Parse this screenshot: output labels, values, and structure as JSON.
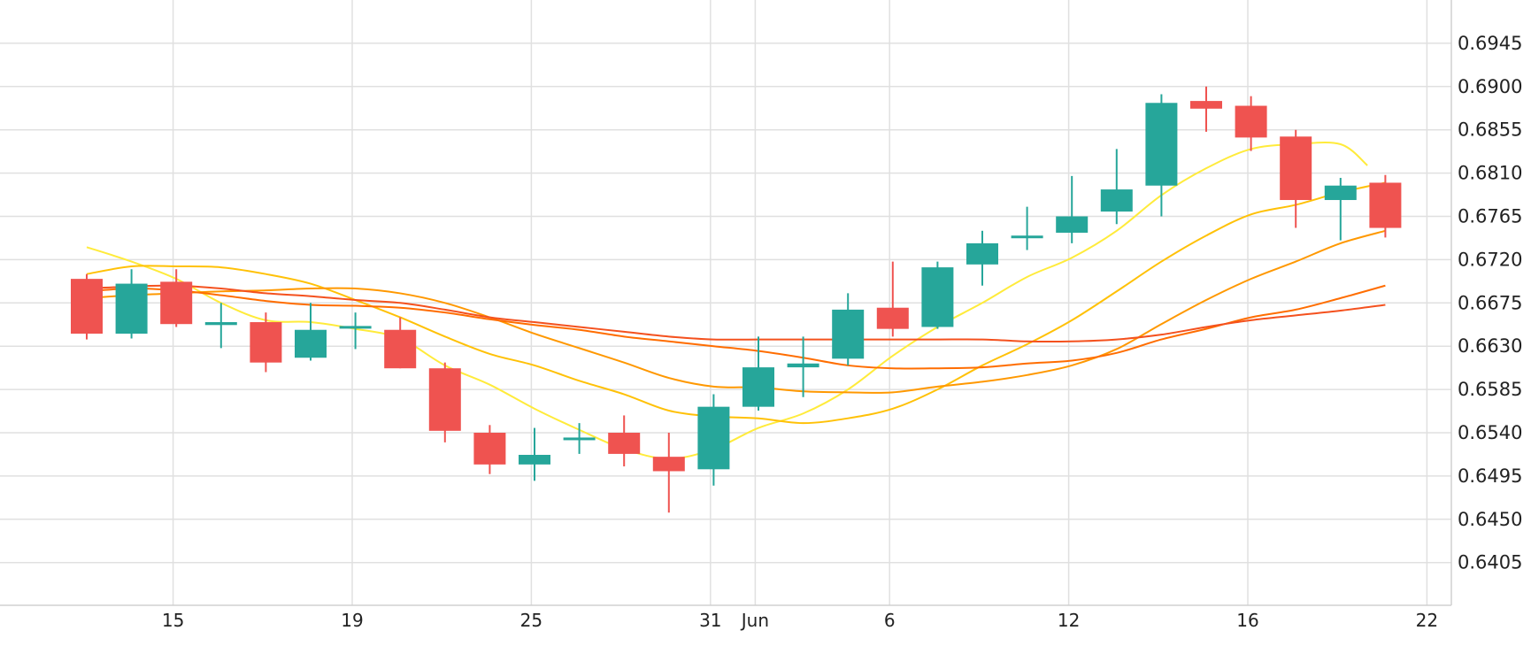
{
  "chart_data": {
    "type": "candlestick",
    "grid": true,
    "y_axis_position": "right",
    "ylim": [
      0.636,
      0.699
    ],
    "y_ticks": [
      "0.6945",
      "0.6900",
      "0.6855",
      "0.6810",
      "0.6765",
      "0.6720",
      "0.6675",
      "0.6630",
      "0.6585",
      "0.6540",
      "0.6495",
      "0.6450",
      "0.6405"
    ],
    "x_ticks": [
      {
        "label": "15",
        "index": 1
      },
      {
        "label": "19",
        "index": 5
      },
      {
        "label": "25",
        "index": 9
      },
      {
        "label": "31",
        "index": 13
      },
      {
        "label": "Jun",
        "index": 14
      },
      {
        "label": "6",
        "index": 17
      },
      {
        "label": "12",
        "index": 21
      },
      {
        "label": "16",
        "index": 25
      },
      {
        "label": "22",
        "index": 29
      }
    ],
    "candles": [
      {
        "o": 0.67,
        "h": 0.6705,
        "l": 0.6637,
        "c": 0.6643
      },
      {
        "o": 0.6643,
        "h": 0.671,
        "l": 0.6638,
        "c": 0.6695
      },
      {
        "o": 0.6697,
        "h": 0.671,
        "l": 0.665,
        "c": 0.6653
      },
      {
        "o": 0.6652,
        "h": 0.6675,
        "l": 0.6628,
        "c": 0.6655
      },
      {
        "o": 0.6655,
        "h": 0.6665,
        "l": 0.6603,
        "c": 0.6613
      },
      {
        "o": 0.6618,
        "h": 0.6675,
        "l": 0.6615,
        "c": 0.6647
      },
      {
        "o": 0.665,
        "h": 0.6665,
        "l": 0.6627,
        "c": 0.6651
      },
      {
        "o": 0.6647,
        "h": 0.666,
        "l": 0.6607,
        "c": 0.6607
      },
      {
        "o": 0.6607,
        "h": 0.6613,
        "l": 0.653,
        "c": 0.6542
      },
      {
        "o": 0.654,
        "h": 0.6548,
        "l": 0.6497,
        "c": 0.6507
      },
      {
        "o": 0.6507,
        "h": 0.6545,
        "l": 0.649,
        "c": 0.6517
      },
      {
        "o": 0.6535,
        "h": 0.655,
        "l": 0.6518,
        "c": 0.6535
      },
      {
        "o": 0.654,
        "h": 0.6558,
        "l": 0.6505,
        "c": 0.6518
      },
      {
        "o": 0.6515,
        "h": 0.654,
        "l": 0.6457,
        "c": 0.65
      },
      {
        "o": 0.6502,
        "h": 0.658,
        "l": 0.6485,
        "c": 0.6567
      },
      {
        "o": 0.6567,
        "h": 0.664,
        "l": 0.6563,
        "c": 0.6608
      },
      {
        "o": 0.6608,
        "h": 0.664,
        "l": 0.6577,
        "c": 0.6612
      },
      {
        "o": 0.6617,
        "h": 0.6685,
        "l": 0.661,
        "c": 0.6668
      },
      {
        "o": 0.667,
        "h": 0.6718,
        "l": 0.664,
        "c": 0.6648
      },
      {
        "o": 0.665,
        "h": 0.6718,
        "l": 0.6648,
        "c": 0.6712
      },
      {
        "o": 0.6715,
        "h": 0.675,
        "l": 0.6693,
        "c": 0.6737
      },
      {
        "o": 0.6745,
        "h": 0.6775,
        "l": 0.673,
        "c": 0.6745
      },
      {
        "o": 0.6748,
        "h": 0.6807,
        "l": 0.6737,
        "c": 0.6765
      },
      {
        "o": 0.677,
        "h": 0.6835,
        "l": 0.6757,
        "c": 0.6793
      },
      {
        "o": 0.6797,
        "h": 0.6892,
        "l": 0.6765,
        "c": 0.6883
      },
      {
        "o": 0.6885,
        "h": 0.69,
        "l": 0.6853,
        "c": 0.6877
      },
      {
        "o": 0.688,
        "h": 0.689,
        "l": 0.6833,
        "c": 0.6847
      },
      {
        "o": 0.6848,
        "h": 0.6855,
        "l": 0.6753,
        "c": 0.6782
      },
      {
        "o": 0.6782,
        "h": 0.6805,
        "l": 0.674,
        "c": 0.6797
      },
      {
        "o": 0.68,
        "h": 0.6808,
        "l": 0.6743,
        "c": 0.6753
      }
    ],
    "moving_averages": [
      {
        "color": "#FFEB3B",
        "values": [
          [
            0,
            0.6733
          ],
          [
            1,
            0.6718
          ],
          [
            2,
            0.67
          ],
          [
            3,
            0.6675
          ],
          [
            4,
            0.6657
          ],
          [
            5,
            0.6655
          ],
          [
            6,
            0.6648
          ],
          [
            7,
            0.6638
          ],
          [
            8,
            0.661
          ],
          [
            9,
            0.659
          ],
          [
            10,
            0.6565
          ],
          [
            11,
            0.6543
          ],
          [
            12,
            0.6523
          ],
          [
            13,
            0.6513
          ],
          [
            14,
            0.6523
          ],
          [
            15,
            0.6545
          ],
          [
            16,
            0.656
          ],
          [
            17,
            0.6585
          ],
          [
            18,
            0.662
          ],
          [
            19,
            0.665
          ],
          [
            20,
            0.6675
          ],
          [
            21,
            0.6702
          ],
          [
            22,
            0.6722
          ],
          [
            23,
            0.675
          ],
          [
            24,
            0.6787
          ],
          [
            25,
            0.6815
          ],
          [
            26,
            0.6835
          ],
          [
            27,
            0.684
          ],
          [
            28,
            0.684
          ],
          [
            28.6,
            0.6818
          ]
        ]
      },
      {
        "color": "#FFC107",
        "values": [
          [
            0,
            0.6705
          ],
          [
            1,
            0.6713
          ],
          [
            2,
            0.6713
          ],
          [
            3,
            0.6712
          ],
          [
            4,
            0.6705
          ],
          [
            5,
            0.6695
          ],
          [
            6,
            0.6678
          ],
          [
            7,
            0.666
          ],
          [
            8,
            0.664
          ],
          [
            9,
            0.6622
          ],
          [
            10,
            0.661
          ],
          [
            11,
            0.6594
          ],
          [
            12,
            0.658
          ],
          [
            13,
            0.6563
          ],
          [
            14,
            0.6557
          ],
          [
            15,
            0.6555
          ],
          [
            16,
            0.655
          ],
          [
            17,
            0.6555
          ],
          [
            18,
            0.6565
          ],
          [
            19,
            0.6585
          ],
          [
            20,
            0.661
          ],
          [
            21,
            0.6632
          ],
          [
            22,
            0.6657
          ],
          [
            23,
            0.6687
          ],
          [
            24,
            0.6718
          ],
          [
            25,
            0.6745
          ],
          [
            26,
            0.6767
          ],
          [
            27,
            0.6777
          ],
          [
            28,
            0.679
          ],
          [
            29,
            0.68
          ]
        ]
      },
      {
        "color": "#FF9800",
        "values": [
          [
            0,
            0.668
          ],
          [
            1,
            0.6683
          ],
          [
            2,
            0.6685
          ],
          [
            3,
            0.6687
          ],
          [
            4,
            0.6688
          ],
          [
            5,
            0.669
          ],
          [
            6,
            0.669
          ],
          [
            7,
            0.6685
          ],
          [
            8,
            0.6675
          ],
          [
            9,
            0.666
          ],
          [
            10,
            0.6643
          ],
          [
            11,
            0.6628
          ],
          [
            12,
            0.6613
          ],
          [
            13,
            0.6597
          ],
          [
            14,
            0.6588
          ],
          [
            15,
            0.6587
          ],
          [
            16,
            0.6583
          ],
          [
            17,
            0.6582
          ],
          [
            18,
            0.6582
          ],
          [
            19,
            0.6588
          ],
          [
            20,
            0.6593
          ],
          [
            21,
            0.66
          ],
          [
            22,
            0.661
          ],
          [
            23,
            0.6627
          ],
          [
            24,
            0.6653
          ],
          [
            25,
            0.6678
          ],
          [
            26,
            0.67
          ],
          [
            27,
            0.6718
          ],
          [
            28,
            0.6737
          ],
          [
            29,
            0.675
          ]
        ]
      },
      {
        "color": "#FF6D00",
        "values": [
          [
            0,
            0.6687
          ],
          [
            1,
            0.669
          ],
          [
            2,
            0.6688
          ],
          [
            3,
            0.6683
          ],
          [
            4,
            0.6677
          ],
          [
            5,
            0.6673
          ],
          [
            6,
            0.6672
          ],
          [
            7,
            0.667
          ],
          [
            8,
            0.6665
          ],
          [
            9,
            0.6658
          ],
          [
            10,
            0.6652
          ],
          [
            11,
            0.6647
          ],
          [
            12,
            0.664
          ],
          [
            13,
            0.6635
          ],
          [
            14,
            0.663
          ],
          [
            15,
            0.6625
          ],
          [
            16,
            0.6618
          ],
          [
            17,
            0.661
          ],
          [
            18,
            0.6607
          ],
          [
            19,
            0.6607
          ],
          [
            20,
            0.6608
          ],
          [
            21,
            0.6612
          ],
          [
            22,
            0.6615
          ],
          [
            23,
            0.6623
          ],
          [
            24,
            0.6637
          ],
          [
            25,
            0.6648
          ],
          [
            26,
            0.666
          ],
          [
            27,
            0.6668
          ],
          [
            28,
            0.668
          ],
          [
            29,
            0.6693
          ]
        ]
      },
      {
        "color": "#F4511E",
        "values": [
          [
            0,
            0.669
          ],
          [
            1,
            0.6692
          ],
          [
            2,
            0.6693
          ],
          [
            3,
            0.669
          ],
          [
            4,
            0.6685
          ],
          [
            5,
            0.6682
          ],
          [
            6,
            0.6678
          ],
          [
            7,
            0.6675
          ],
          [
            8,
            0.6668
          ],
          [
            9,
            0.666
          ],
          [
            10,
            0.6655
          ],
          [
            11,
            0.665
          ],
          [
            12,
            0.6645
          ],
          [
            13,
            0.664
          ],
          [
            14,
            0.6637
          ],
          [
            15,
            0.6637
          ],
          [
            16,
            0.6637
          ],
          [
            17,
            0.6637
          ],
          [
            18,
            0.6637
          ],
          [
            19,
            0.6637
          ],
          [
            20,
            0.6637
          ],
          [
            21,
            0.6635
          ],
          [
            22,
            0.6635
          ],
          [
            23,
            0.6637
          ],
          [
            24,
            0.6642
          ],
          [
            25,
            0.665
          ],
          [
            26,
            0.6657
          ],
          [
            27,
            0.6662
          ],
          [
            28,
            0.6667
          ],
          [
            29,
            0.6673
          ]
        ]
      }
    ],
    "colors": {
      "up": "#26A69A",
      "down": "#EF5350",
      "grid": "#E0E0E0",
      "axis": "#D0D0D0"
    }
  }
}
